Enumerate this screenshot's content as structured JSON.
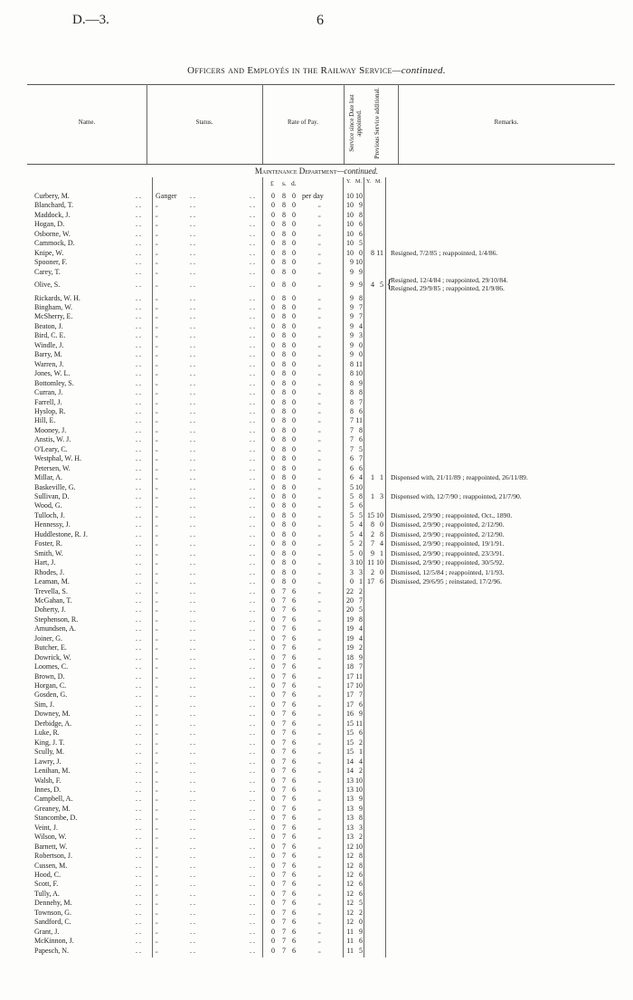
{
  "header": {
    "doc_id": "D.—3.",
    "page_number": "6"
  },
  "title": {
    "main": "Officers and Employés in the Railway Service",
    "suffix": "—continued."
  },
  "columns": {
    "name": "Name.",
    "status": "Status.",
    "rate": "Rate of Pay.",
    "service": "Service since Date last appointed.",
    "previous": "Previous Service additional.",
    "remarks": "Remarks."
  },
  "section": {
    "main": "Maintenance Department",
    "suffix": "—continued."
  },
  "units": {
    "pound": "£",
    "shilling": "s.",
    "pence": "d.",
    "y1": "Y.",
    "m1": "M.",
    "y2": "Y.",
    "m2": "M."
  },
  "labels": {
    "status_first": "Ganger",
    "per_first": "per day",
    "ditto": "„",
    "dots": ". ."
  },
  "rows": [
    [
      "Curbery, M.",
      "8",
      "0",
      "10",
      "10",
      "",
      "",
      []
    ],
    [
      "Blanchard, T.",
      "8",
      "0",
      "10",
      "9",
      "",
      "",
      []
    ],
    [
      "Maddock, J.",
      "8",
      "0",
      "10",
      "8",
      "",
      "",
      []
    ],
    [
      "Hogan, D.",
      "8",
      "0",
      "10",
      "6",
      "",
      "",
      []
    ],
    [
      "Osborne, W.",
      "8",
      "0",
      "10",
      "6",
      "",
      "",
      []
    ],
    [
      "Cammock, D.",
      "8",
      "0",
      "10",
      "5",
      "",
      "",
      []
    ],
    [
      "Knipe, W.",
      "8",
      "0",
      "10",
      "0",
      "8",
      "11",
      [
        "Resigned, 7/2/85 ; reappointed, 1/4/86."
      ]
    ],
    [
      "Spooner, F.",
      "8",
      "0",
      "9",
      "10",
      "",
      "",
      []
    ],
    [
      "Carey, T.",
      "8",
      "0",
      "9",
      "9",
      "",
      "",
      []
    ],
    [
      "Olive, S.",
      "8",
      "0",
      "9",
      "9",
      "4",
      "5",
      [
        "Resigned, 12/4/84 ; reappointed, 29/10/84.",
        "Resigned, 29/9/85 ; reappointed, 21/9/86."
      ]
    ],
    [
      "Rickards, W. H.",
      "8",
      "0",
      "9",
      "8",
      "",
      "",
      []
    ],
    [
      "Bingham, W.",
      "8",
      "0",
      "9",
      "7",
      "",
      "",
      []
    ],
    [
      "McSherry, E.",
      "8",
      "0",
      "9",
      "7",
      "",
      "",
      []
    ],
    [
      "Beaton, J.",
      "8",
      "0",
      "9",
      "4",
      "",
      "",
      []
    ],
    [
      "Bird, C. E.",
      "8",
      "0",
      "9",
      "3",
      "",
      "",
      []
    ],
    [
      "Windle, J.",
      "8",
      "0",
      "9",
      "0",
      "",
      "",
      []
    ],
    [
      "Barry, M.",
      "8",
      "0",
      "9",
      "0",
      "",
      "",
      []
    ],
    [
      "Warren, J.",
      "8",
      "0",
      "8",
      "11",
      "",
      "",
      []
    ],
    [
      "Jones, W. L.",
      "8",
      "0",
      "8",
      "10",
      "",
      "",
      []
    ],
    [
      "Bottomley, S.",
      "8",
      "0",
      "8",
      "9",
      "",
      "",
      []
    ],
    [
      "Curran, J.",
      "8",
      "0",
      "8",
      "8",
      "",
      "",
      []
    ],
    [
      "Farrell, J.",
      "8",
      "0",
      "8",
      "7",
      "",
      "",
      []
    ],
    [
      "Hyslop, R.",
      "8",
      "0",
      "8",
      "6",
      "",
      "",
      []
    ],
    [
      "Hill, E.",
      "8",
      "0",
      "7",
      "11",
      "",
      "",
      []
    ],
    [
      "Mooney, J.",
      "8",
      "0",
      "7",
      "8",
      "",
      "",
      []
    ],
    [
      "Anstis, W. J.",
      "8",
      "0",
      "7",
      "6",
      "",
      "",
      []
    ],
    [
      "O'Leary, C.",
      "8",
      "0",
      "7",
      "5",
      "",
      "",
      []
    ],
    [
      "Westphal, W. H.",
      "8",
      "0",
      "6",
      "7",
      "",
      "",
      []
    ],
    [
      "Petersen, W.",
      "8",
      "0",
      "6",
      "6",
      "",
      "",
      []
    ],
    [
      "Millar, A.",
      "8",
      "0",
      "6",
      "4",
      "1",
      "1",
      [
        "Dispensed with, 21/11/89 ; reappointed, 26/11/89."
      ]
    ],
    [
      "Baskeville, G.",
      "8",
      "0",
      "5",
      "10",
      "",
      "",
      []
    ],
    [
      "Sullivan, D.",
      "8",
      "0",
      "5",
      "8",
      "1",
      "3",
      [
        "Dispensed with, 12/7/90 ; reappointed, 21/7/90."
      ]
    ],
    [
      "Wood, G.",
      "8",
      "0",
      "5",
      "6",
      "",
      "",
      []
    ],
    [
      "Tulloch, J.",
      "8",
      "0",
      "5",
      "5",
      "15",
      "10",
      [
        "Dismissed, 2/9/90 ; reappointed, Oct., 1890."
      ]
    ],
    [
      "Hennessy, J.",
      "8",
      "0",
      "5",
      "4",
      "8",
      "0",
      [
        "Dismissed, 2/9/90 ; reappointed, 2/12/90."
      ]
    ],
    [
      "Huddlestone, R. J.",
      "8",
      "0",
      "5",
      "4",
      "2",
      "8",
      [
        "Dismissed, 2/9/90 ; reappointed, 2/12/90."
      ]
    ],
    [
      "Foster, R.",
      "8",
      "0",
      "5",
      "2",
      "7",
      "4",
      [
        "Dismissed, 2/9/90 ; reappointed, 19/1/91."
      ]
    ],
    [
      "Smith, W.",
      "8",
      "0",
      "5",
      "0",
      "9",
      "1",
      [
        "Dismissed, 2/9/90 ; reappointed, 23/3/91."
      ]
    ],
    [
      "Hart, J.",
      "8",
      "0",
      "3",
      "10",
      "11",
      "10",
      [
        "Dismissed, 2/9/90 ; reappointed, 30/5/92."
      ]
    ],
    [
      "Rhodes, J.",
      "8",
      "0",
      "3",
      "3",
      "2",
      "0",
      [
        "Dismissed, 12/5/84 ; reappointed, 1/1/93."
      ]
    ],
    [
      "Leaman, M.",
      "8",
      "0",
      "0",
      "1",
      "17",
      "6",
      [
        "Dismissed, 29/6/95 ; reinstated, 17/2/96."
      ]
    ],
    [
      "Trevella, S.",
      "7",
      "6",
      "22",
      "2",
      "",
      "",
      []
    ],
    [
      "McGahan, T.",
      "7",
      "6",
      "20",
      "7",
      "",
      "",
      []
    ],
    [
      "Doherty, J.",
      "7",
      "6",
      "20",
      "5",
      "",
      "",
      []
    ],
    [
      "Stephenson, R.",
      "7",
      "6",
      "19",
      "8",
      "",
      "",
      []
    ],
    [
      "Amundsen, A.",
      "7",
      "6",
      "19",
      "4",
      "",
      "",
      []
    ],
    [
      "Joiner, G.",
      "7",
      "6",
      "19",
      "4",
      "",
      "",
      []
    ],
    [
      "Butcher, E.",
      "7",
      "6",
      "19",
      "2",
      "",
      "",
      []
    ],
    [
      "Dowrick, W.",
      "7",
      "6",
      "18",
      "9",
      "",
      "",
      []
    ],
    [
      "Loomes, C.",
      "7",
      "6",
      "18",
      "7",
      "",
      "",
      []
    ],
    [
      "Brown, D.",
      "7",
      "6",
      "17",
      "11",
      "",
      "",
      []
    ],
    [
      "Horgan, C.",
      "7",
      "6",
      "17",
      "10",
      "",
      "",
      []
    ],
    [
      "Gosden, G.",
      "7",
      "6",
      "17",
      "7",
      "",
      "",
      []
    ],
    [
      "Sim, J.",
      "7",
      "6",
      "17",
      "6",
      "",
      "",
      []
    ],
    [
      "Downey, M.",
      "7",
      "6",
      "16",
      "9",
      "",
      "",
      []
    ],
    [
      "Derbidge, A.",
      "7",
      "6",
      "15",
      "11",
      "",
      "",
      []
    ],
    [
      "Luke, R.",
      "7",
      "6",
      "15",
      "6",
      "",
      "",
      []
    ],
    [
      "King, J. T.",
      "7",
      "6",
      "15",
      "2",
      "",
      "",
      []
    ],
    [
      "Scully, M.",
      "7",
      "6",
      "15",
      "1",
      "",
      "",
      []
    ],
    [
      "Lawry, J.",
      "7",
      "6",
      "14",
      "4",
      "",
      "",
      []
    ],
    [
      "Lenihan, M.",
      "7",
      "6",
      "14",
      "2",
      "",
      "",
      []
    ],
    [
      "Walsh, F.",
      "7",
      "6",
      "13",
      "10",
      "",
      "",
      []
    ],
    [
      "Innes, D.",
      "7",
      "6",
      "13",
      "10",
      "",
      "",
      []
    ],
    [
      "Campbell, A.",
      "7",
      "6",
      "13",
      "9",
      "",
      "",
      []
    ],
    [
      "Greaney, M.",
      "7",
      "6",
      "13",
      "9",
      "",
      "",
      []
    ],
    [
      "Stancombe, D.",
      "7",
      "6",
      "13",
      "8",
      "",
      "",
      []
    ],
    [
      "Veint, J.",
      "7",
      "6",
      "13",
      "3",
      "",
      "",
      []
    ],
    [
      "Wilson, W.",
      "7",
      "6",
      "13",
      "2",
      "",
      "",
      []
    ],
    [
      "Barnett, W.",
      "7",
      "6",
      "12",
      "10",
      "",
      "",
      []
    ],
    [
      "Robertson, J.",
      "7",
      "6",
      "12",
      "8",
      "",
      "",
      []
    ],
    [
      "Cussen, M.",
      "7",
      "6",
      "12",
      "8",
      "",
      "",
      []
    ],
    [
      "Hood, C.",
      "7",
      "6",
      "12",
      "6",
      "",
      "",
      []
    ],
    [
      "Scott, F.",
      "7",
      "6",
      "12",
      "6",
      "",
      "",
      []
    ],
    [
      "Tully, A.",
      "7",
      "6",
      "12",
      "6",
      "",
      "",
      []
    ],
    [
      "Dennehy, M.",
      "7",
      "6",
      "12",
      "5",
      "",
      "",
      []
    ],
    [
      "Townson, G.",
      "7",
      "6",
      "12",
      "2",
      "",
      "",
      []
    ],
    [
      "Sandford, C.",
      "7",
      "6",
      "12",
      "0",
      "",
      "",
      []
    ],
    [
      "Grant, J.",
      "7",
      "6",
      "11",
      "9",
      "",
      "",
      []
    ],
    [
      "McKinnon, J.",
      "7",
      "6",
      "11",
      "6",
      "",
      "",
      []
    ],
    [
      "Papesch, N.",
      "7",
      "6",
      "11",
      "5",
      "",
      "",
      []
    ]
  ]
}
